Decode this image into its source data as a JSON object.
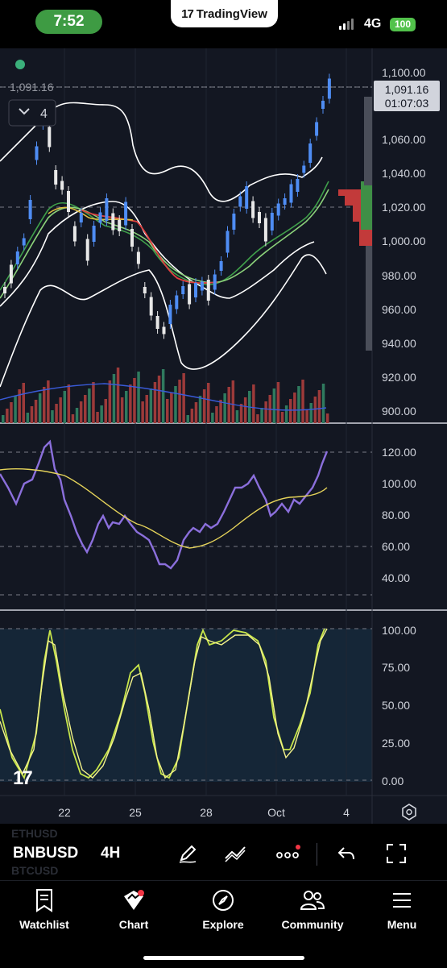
{
  "status_bar": {
    "time": "7:52",
    "app_banner": "TradingView",
    "network": "4G",
    "battery": "100"
  },
  "chart": {
    "price_axis": [
      "1,100.00",
      "1,060.00",
      "1,040.00",
      "1,020.00",
      "1,000.00",
      "980.00",
      "960.00",
      "940.00",
      "920.00",
      "900.00"
    ],
    "last_price_tag": "1,091.16",
    "countdown": "01:07:03",
    "crosshair_price": "1,091.16",
    "indicator_count": "4",
    "indicator1_axis": [
      "120.00",
      "100.00",
      "80.00",
      "60.00",
      "40.00"
    ],
    "indicator2_axis": [
      "100.00",
      "75.00",
      "50.00",
      "25.00",
      "0.00"
    ],
    "time_axis": [
      "22",
      "25",
      "28",
      "Oct",
      "4"
    ],
    "watermark": "17"
  },
  "controls": {
    "symbol": "BNBUSD",
    "interval": "4H",
    "ghost_above": "ETHUSD",
    "ghost_below": "BTCUSD"
  },
  "tabs": [
    {
      "label": "Watchlist",
      "icon": "watchlist-icon"
    },
    {
      "label": "Chart",
      "icon": "chart-icon"
    },
    {
      "label": "Explore",
      "icon": "compass-icon"
    },
    {
      "label": "Community",
      "icon": "community-icon"
    },
    {
      "label": "Menu",
      "icon": "menu-icon"
    }
  ],
  "colors": {
    "background": "#131722",
    "up": "#4f8df4",
    "down": "#e8e8e8",
    "rsi": "#8b6fdc",
    "stoch": "#c8e64a"
  }
}
